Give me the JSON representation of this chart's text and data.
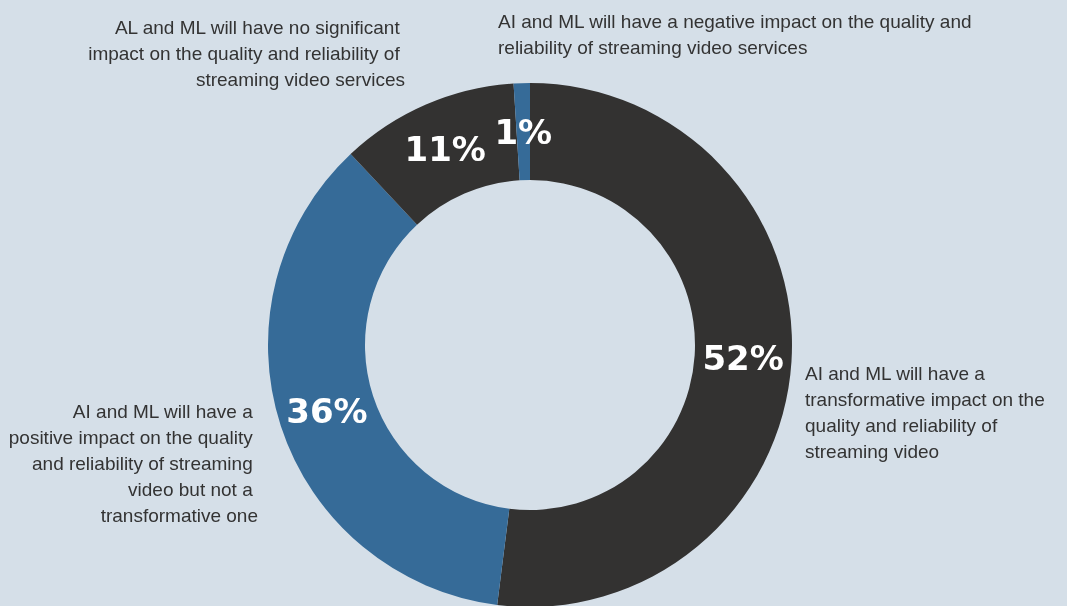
{
  "chart_data": {
    "type": "donut",
    "categories": [
      "AI and ML will have a transformative impact on the quality and reliability of streaming video",
      "AI and ML will have a positive impact on the quality and reliability of streaming video but not a transformative one",
      "AL and ML will have no significant impact on the quality and reliability of streaming video services",
      "AI and ML will have a negative impact on the quality and reliability of streaming video services"
    ],
    "values": [
      52,
      36,
      11,
      1
    ],
    "value_labels": [
      "52%",
      "36%",
      "11%",
      "1%"
    ],
    "colors": [
      "#333231",
      "#366b98",
      "#333231",
      "#366b98"
    ],
    "legend": false
  }
}
